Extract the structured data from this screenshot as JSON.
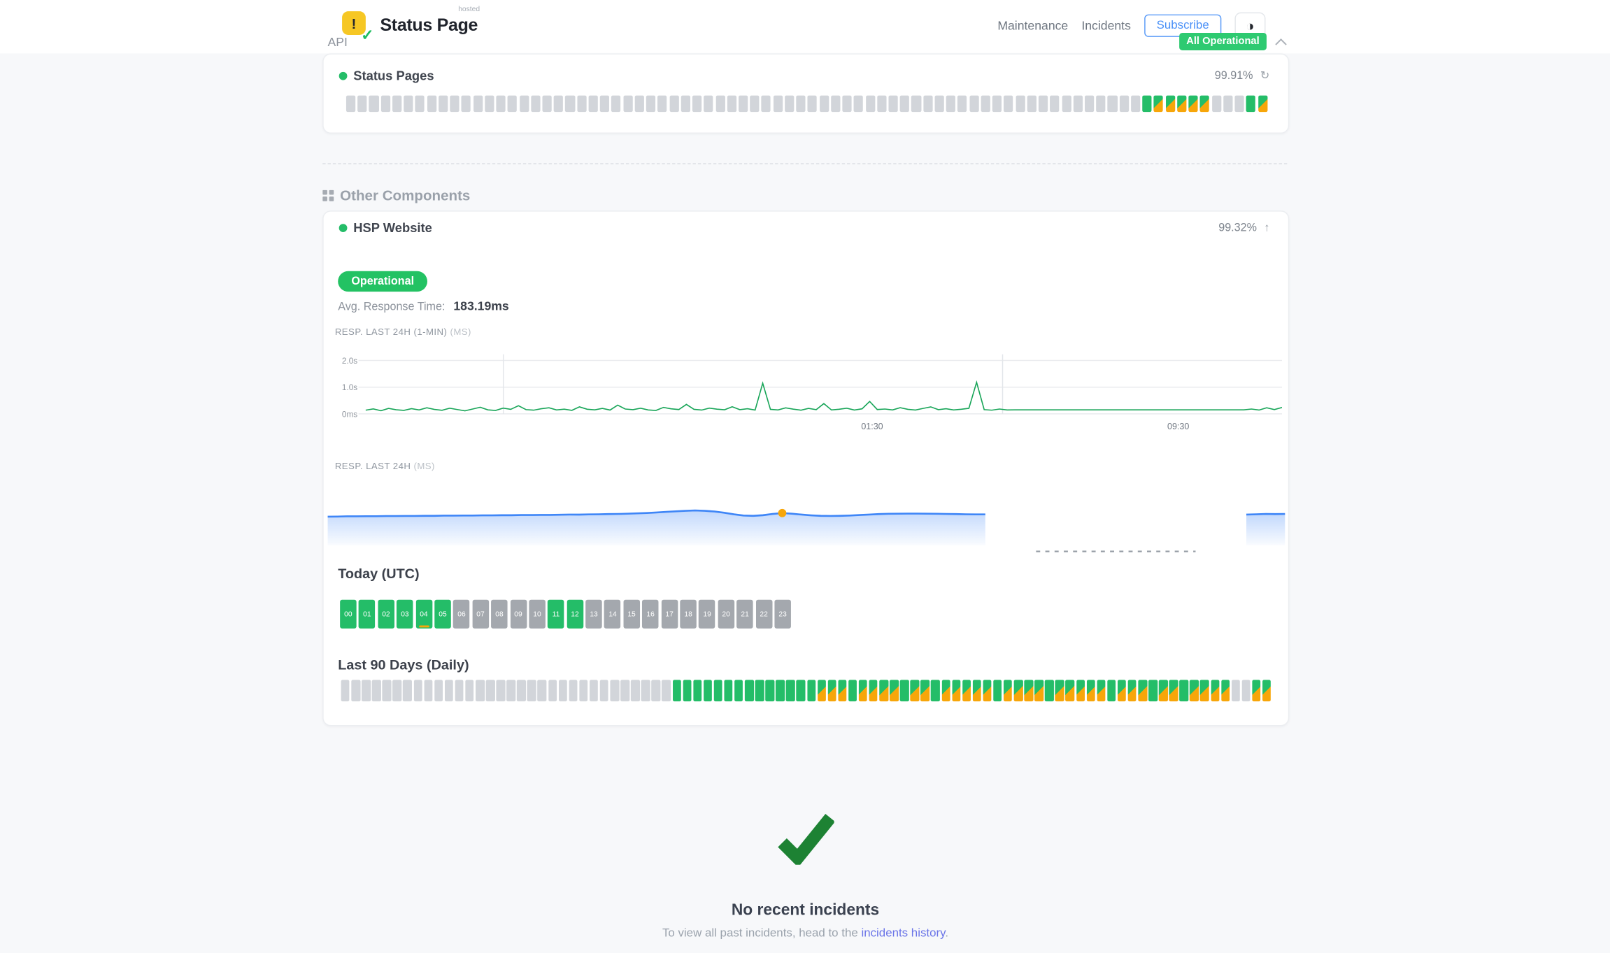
{
  "header": {
    "brand": {
      "name": "Status Page",
      "superscript": "hosted",
      "icon_exclamation": "!",
      "icon_check": "✓"
    },
    "nav": {
      "maintenance": "Maintenance",
      "incidents": "Incidents"
    },
    "subscribe_label": "Subscribe",
    "overall_status": "All Operational"
  },
  "colors": {
    "green": "#24bd68",
    "orange": "#f7a60a",
    "bar_gray": "#d2d5da",
    "block_gray": "#a4a8ae",
    "blue": "#3f86f7",
    "line_green": "#18a558",
    "check_green": "#1d8233",
    "link_blue": "#6b75e8"
  },
  "api": {
    "title": "API",
    "component": {
      "name": "Status Pages",
      "uptime": "99.91%",
      "bars": [
        "e",
        "e",
        "e",
        "e",
        "e",
        "e",
        "e",
        "e",
        "e",
        "e",
        "e",
        "e",
        "e",
        "e",
        "e",
        "e",
        "e",
        "e",
        "e",
        "e",
        "e",
        "e",
        "e",
        "e",
        "e",
        "e",
        "e",
        "e",
        "e",
        "e",
        "e",
        "e",
        "e",
        "e",
        "e",
        "e",
        "e",
        "e",
        "e",
        "e",
        "e",
        "e",
        "e",
        "e",
        "e",
        "e",
        "e",
        "e",
        "e",
        "e",
        "e",
        "e",
        "e",
        "e",
        "e",
        "e",
        "e",
        "e",
        "e",
        "e",
        "e",
        "e",
        "e",
        "e",
        "e",
        "e",
        "e",
        "e",
        "e",
        "u",
        "m",
        "m",
        "m",
        "m",
        "m",
        "e",
        "e",
        "e",
        "u",
        "m"
      ]
    }
  },
  "other": {
    "title": "Other Components",
    "component": {
      "name": "HSP Website",
      "uptime": "99.32%",
      "status_label": "Operational",
      "avg_label": "Avg. Response Time:",
      "avg_value": "183.19ms",
      "chart1_label": "RESP. LAST 24H (1-MIN)",
      "chart1_unit": "(MS)",
      "chart2_label": "RESP. LAST 24H",
      "chart2_unit": "(MS)",
      "today_label": "Today (UTC)",
      "hours": [
        {
          "label": "00",
          "status": "u"
        },
        {
          "label": "01",
          "status": "u"
        },
        {
          "label": "02",
          "status": "u"
        },
        {
          "label": "03",
          "status": "u"
        },
        {
          "label": "04",
          "status": "u",
          "marker": true
        },
        {
          "label": "05",
          "status": "u"
        },
        {
          "label": "06",
          "status": "e"
        },
        {
          "label": "07",
          "status": "e"
        },
        {
          "label": "08",
          "status": "e"
        },
        {
          "label": "09",
          "status": "e"
        },
        {
          "label": "10",
          "status": "e"
        },
        {
          "label": "11",
          "status": "u"
        },
        {
          "label": "12",
          "status": "u"
        },
        {
          "label": "13",
          "status": "e"
        },
        {
          "label": "14",
          "status": "e"
        },
        {
          "label": "15",
          "status": "e"
        },
        {
          "label": "16",
          "status": "e"
        },
        {
          "label": "17",
          "status": "e"
        },
        {
          "label": "18",
          "status": "e"
        },
        {
          "label": "19",
          "status": "e"
        },
        {
          "label": "20",
          "status": "e"
        },
        {
          "label": "21",
          "status": "e"
        },
        {
          "label": "22",
          "status": "e"
        },
        {
          "label": "23",
          "status": "e"
        }
      ],
      "last90_label": "Last 90 Days (Daily)",
      "days": [
        "e",
        "e",
        "e",
        "e",
        "e",
        "e",
        "e",
        "e",
        "e",
        "e",
        "e",
        "e",
        "e",
        "e",
        "e",
        "e",
        "e",
        "e",
        "e",
        "e",
        "e",
        "e",
        "e",
        "e",
        "e",
        "e",
        "e",
        "e",
        "e",
        "e",
        "e",
        "e",
        "u",
        "u",
        "u",
        "u",
        "u",
        "u",
        "u",
        "u",
        "u",
        "u",
        "u",
        "u",
        "u",
        "u",
        "m",
        "m",
        "m",
        "u",
        "m",
        "m",
        "m",
        "m",
        "u",
        "m",
        "m",
        "u",
        "m",
        "m",
        "m",
        "m",
        "m",
        "u",
        "m",
        "m",
        "m",
        "m",
        "u",
        "m",
        "m",
        "m",
        "m",
        "m",
        "u",
        "m",
        "m",
        "m",
        "u",
        "m",
        "m",
        "u",
        "m",
        "m",
        "m",
        "m",
        "e",
        "e",
        "m",
        "m"
      ]
    }
  },
  "chart_data": [
    {
      "type": "line",
      "title": "RESP. LAST 24H (1-MIN) (MS)",
      "ylim": [
        0,
        2000
      ],
      "yticks": [
        "2.0s",
        "1.0s",
        "0ms"
      ],
      "xticks": [
        "01:30",
        "09:30"
      ],
      "series": [
        {
          "name": "response_time_ms",
          "values": [
            140,
            185,
            120,
            205,
            155,
            130,
            195,
            145,
            225,
            165,
            135,
            210,
            160,
            115,
            180,
            245,
            150,
            128,
            215,
            170,
            305,
            158,
            138,
            192,
            228,
            148,
            178,
            132,
            262,
            172,
            150,
            205,
            142,
            325,
            182,
            158,
            212,
            148,
            128,
            242,
            188,
            162,
            355,
            168,
            142,
            215,
            178,
            152,
            265,
            158,
            192,
            142,
            1150,
            168,
            148,
            222,
            178,
            138,
            202,
            158,
            385,
            148,
            172,
            212,
            142,
            188,
            465,
            162,
            182,
            148,
            232,
            168,
            142,
            202,
            262,
            158,
            192,
            148,
            172,
            208,
            1180,
            158,
            138,
            182,
            148,
            150,
            151,
            150,
            149,
            150,
            150,
            151,
            150,
            149,
            150,
            150,
            151,
            150,
            149,
            150,
            150,
            151,
            150,
            149,
            150,
            150,
            151,
            150,
            149,
            150,
            150,
            151,
            150,
            149,
            150,
            150,
            182,
            142,
            225,
            162,
            240
          ]
        }
      ]
    },
    {
      "type": "area",
      "title": "RESP. LAST 24H (MS)",
      "ylim": [
        0,
        300
      ],
      "marker_index": 47,
      "series": [
        {
          "name": "avg_response_ms",
          "values": [
            190,
            191,
            192,
            192,
            193,
            193,
            194,
            194,
            195,
            195,
            196,
            196,
            197,
            197,
            198,
            198,
            199,
            199,
            200,
            200,
            201,
            201,
            202,
            202,
            203,
            204,
            204,
            205,
            206,
            207,
            208,
            210,
            212,
            215,
            218,
            222,
            226,
            229,
            231,
            229,
            224,
            216,
            206,
            198,
            196,
            200,
            208,
            214,
            210,
            204,
            199,
            196,
            195,
            196,
            198,
            201,
            204,
            207,
            209,
            210,
            211,
            211,
            210,
            209,
            208,
            207,
            206,
            205,
            205,
            null,
            null,
            null,
            null,
            null,
            null,
            null,
            null,
            null,
            null,
            null,
            null,
            null,
            null,
            null,
            null,
            null,
            null,
            null,
            null,
            null,
            null,
            null,
            null,
            null,
            null,
            204,
            206,
            208,
            207,
            208
          ]
        }
      ]
    }
  ],
  "footer": {
    "title": "No recent incidents",
    "sub_prefix": "To view all past incidents, head to the ",
    "link_label": "incidents history",
    "sub_suffix": "."
  }
}
